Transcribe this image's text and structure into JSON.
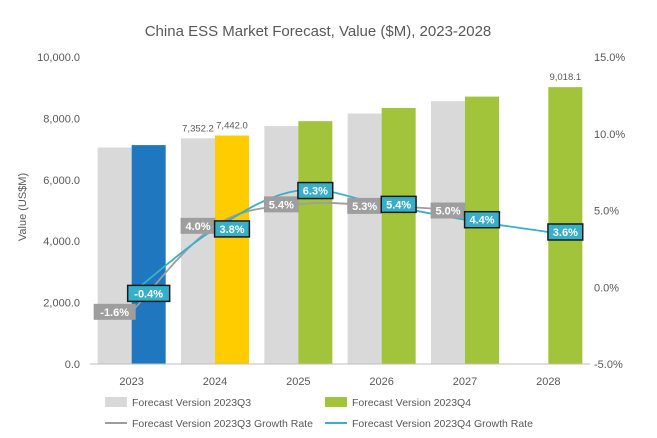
{
  "chart_data": {
    "type": "bar",
    "title": "China ESS Market Forecast, Value ($M), 2023-2028",
    "ylabel": "Value (US$M)",
    "xlabel": "",
    "categories": [
      "2023",
      "2024",
      "2025",
      "2026",
      "2027",
      "2028"
    ],
    "ylim": [
      0,
      10000
    ],
    "y_ticks": [
      "0.0",
      "2,000.0",
      "4,000.0",
      "6,000.0",
      "8,000.0",
      "10,000.0"
    ],
    "y2lim": [
      -5.0,
      15.0
    ],
    "y2_ticks": [
      "-5.0%",
      "0.0%",
      "5.0%",
      "10.0%",
      "15.0%"
    ],
    "series": [
      {
        "name": "Forecast Version 2023Q3",
        "kind": "bar",
        "color": "#d9d9d9",
        "values": [
          7050,
          7352.2,
          7750,
          8160,
          8560,
          null
        ],
        "labels": [
          null,
          "7,352.2",
          null,
          null,
          null,
          null
        ]
      },
      {
        "name": "Forecast Version 2023Q4",
        "kind": "bar",
        "colors": [
          "#1f77bf",
          "#ffcc00",
          "#a2c43a",
          "#a2c43a",
          "#a2c43a",
          "#a2c43a"
        ],
        "values": [
          7130,
          7442.0,
          7910,
          8340,
          8710,
          9018.1
        ],
        "labels": [
          null,
          "7,442.0",
          null,
          null,
          null,
          "9,018.1"
        ]
      },
      {
        "name": "Forecast Version 2023Q3 Growth Rate",
        "kind": "line",
        "axis": "right",
        "color": "#9e9e9e",
        "values": [
          -1.6,
          4.0,
          5.4,
          5.3,
          5.0,
          null
        ],
        "labels": [
          "-1.6%",
          "4.0%",
          "5.4%",
          "5.3%",
          "5.0%",
          null
        ]
      },
      {
        "name": "Forecast Version 2023Q4 Growth Rate",
        "kind": "line",
        "axis": "right",
        "color": "#3aafc9",
        "values": [
          -0.4,
          3.8,
          6.3,
          5.4,
          4.4,
          3.6
        ],
        "labels": [
          "-0.4%",
          "3.8%",
          "6.3%",
          "5.4%",
          "4.4%",
          "3.6%"
        ]
      }
    ],
    "legend_position": "bottom",
    "grid": false
  }
}
